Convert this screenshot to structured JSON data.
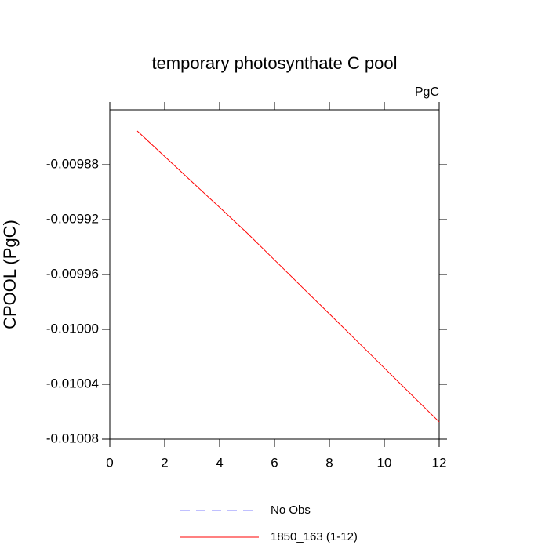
{
  "chart_data": {
    "type": "line",
    "title": "temporary photosynthate C pool",
    "units_label": "PgC",
    "y_label": "CPOOL  (PgC)",
    "x": [
      1,
      2,
      3,
      4,
      5,
      6,
      7,
      8,
      9,
      10,
      11,
      12
    ],
    "series": [
      {
        "color": "#ff0000",
        "values": [
          -0.0098554,
          -0.009874,
          -0.0098926,
          -0.0099111,
          -0.0099297,
          -0.0099494,
          -0.0099691,
          -0.0099887,
          -0.0100084,
          -0.0100281,
          -0.0100478,
          -0.0100674
        ]
      }
    ],
    "xlim": [
      0,
      12
    ],
    "xticks": [
      0,
      2,
      4,
      6,
      8,
      10,
      12
    ],
    "ylim": [
      -0.01008,
      -0.00984
    ],
    "yticks": [
      -0.01008,
      -0.01004,
      {
        "value": -0.01,
        "label": "-0.01000"
      },
      -0.00996,
      -0.00992,
      -0.00988
    ],
    "legend": [
      {
        "label": "No Obs",
        "color": "#8080ff",
        "dashed": true
      },
      {
        "label": "1850_163 (1-12)",
        "color": "#ff0000",
        "dashed": false
      }
    ]
  }
}
